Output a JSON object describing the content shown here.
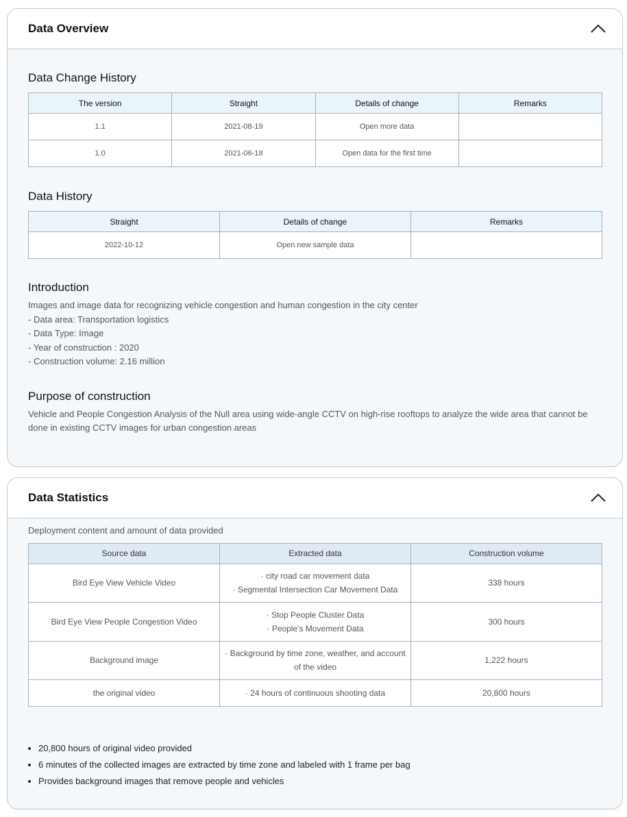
{
  "overview": {
    "title": "Data Overview",
    "change_history": {
      "title": "Data Change History",
      "columns": [
        "The version",
        "Straight",
        "Details of change",
        "Remarks"
      ],
      "rows": [
        [
          "1.1",
          "2021-08-19",
          "Open more data",
          ""
        ],
        [
          "1.0",
          "2021-06-18",
          "Open data for the first time",
          ""
        ]
      ]
    },
    "data_history": {
      "title": "Data History",
      "columns": [
        "Straight",
        "Details of change",
        "Remarks"
      ],
      "rows": [
        [
          "2022-10-12",
          "Open new sample data",
          ""
        ]
      ]
    },
    "introduction": {
      "title": "Introduction",
      "lines": [
        "Images and image data for recognizing vehicle congestion and human congestion in the city center",
        "- Data area: Transportation logistics",
        "- Data Type: Image",
        "- Year of construction : 2020",
        "- Construction volume: 2.16 million"
      ]
    },
    "purpose": {
      "title": "Purpose of construction",
      "text": "Vehicle and People Congestion Analysis of the Null area using wide-angle CCTV on high-rise rooftops to analyze the wide area that cannot be done in existing CCTV images for urban congestion areas"
    }
  },
  "statistics": {
    "title": "Data Statistics",
    "caption": "Deployment content and amount of data provided",
    "columns": [
      "Source data",
      "Extracted data",
      "Construction volume"
    ],
    "rows": [
      {
        "source": "Bird Eye View Vehicle Video",
        "extracted": [
          "· city road car movement data",
          "· Segmental Intersection Car Movement Data"
        ],
        "volume": "338 hours"
      },
      {
        "source": "Bird Eye View People Congestion Video",
        "extracted": [
          "· Stop People Cluster Data",
          "· People's Movement Data"
        ],
        "volume": "300 hours"
      },
      {
        "source": "Background image",
        "extracted": [
          "· Background by time zone, weather, and account",
          "of the video"
        ],
        "volume": "1,222 hours"
      },
      {
        "source": "the original video",
        "extracted": [
          "· 24 hours of continuous shooting data"
        ],
        "volume": "20,800 hours"
      }
    ],
    "bullets": [
      "20,800 hours of original video provided",
      "6 minutes of the collected images are extracted by time zone and labeled with 1 frame per bag",
      "Provides background images that remove people and vehicles"
    ]
  }
}
